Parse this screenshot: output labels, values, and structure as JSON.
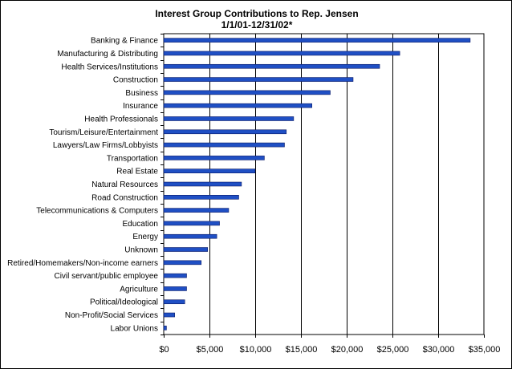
{
  "chart_data": {
    "type": "bar",
    "orientation": "horizontal",
    "title": "Interest Group Contributions to Rep. Jensen",
    "subtitle": "1/1/01-12/31/02*",
    "categories": [
      "Banking & Finance",
      "Manufacturing & Distributing",
      "Health Services/Institutions",
      "Construction",
      "Business",
      "Insurance",
      "Health Professionals",
      "Tourism/Leisure/Entertainment",
      "Lawyers/Law Firms/Lobbyists",
      "Transportation",
      "Real Estate",
      "Natural Resources",
      "Road Construction",
      "Telecommunications & Computers",
      "Education",
      "Energy",
      "Unknown",
      "Retired/Homemakers/Non-income earners",
      "Civil servant/public employee",
      "Agriculture",
      "Political/Ideological",
      "Non-Profit/Social Services",
      "Labor Unions"
    ],
    "values": [
      33500,
      25800,
      23600,
      20700,
      18200,
      16200,
      14200,
      13400,
      13200,
      11000,
      10000,
      8500,
      8200,
      7100,
      6100,
      5800,
      4800,
      4100,
      2500,
      2500,
      2300,
      1200,
      300
    ],
    "xlim": [
      0,
      35000
    ],
    "xticks": [
      0,
      5000,
      10000,
      15000,
      20000,
      25000,
      30000,
      35000
    ],
    "xtick_labels": [
      "$0",
      "$5,000",
      "$10,000",
      "$15,000",
      "$20,000",
      "$25,000",
      "$30,000",
      "$35,000"
    ],
    "grid": "vertical",
    "legend": "none",
    "colors": {
      "bar_fill": "#1f4fc4",
      "bar_stroke": "#0a1a66",
      "gridline": "#000000",
      "axis": "#000000"
    }
  }
}
